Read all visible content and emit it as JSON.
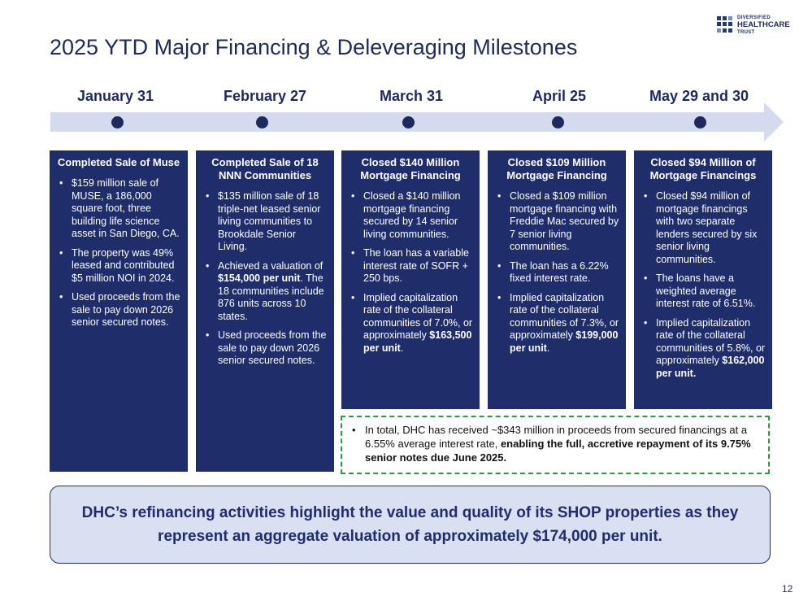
{
  "logo": {
    "line1": "DIVERSIFIED",
    "line2": "HEALTHCARE",
    "line3": "TRUST"
  },
  "title": "2025 YTD Major Financing & Deleveraging Milestones",
  "milestones": [
    {
      "date": "January 31",
      "card_title": "Completed Sale of Muse",
      "bullets": [
        {
          "text": "$159 million sale of MUSE, a 186,000 square foot, three building life science asset in San Diego, CA."
        },
        {
          "text": "The property was 49% leased and contributed $5 million NOI in 2024."
        },
        {
          "text": "Used proceeds from the sale to pay down 2026 senior secured notes."
        }
      ]
    },
    {
      "date": "February 27",
      "card_title": "Completed Sale of 18 NNN Communities",
      "bullets": [
        {
          "text": "$135 million sale of 18 triple-net leased senior living communities to Brookdale Senior Living."
        },
        {
          "pre": "Achieved a valuation of ",
          "bold": "$154,000 per unit",
          "post": ". The 18 communities include 876 units across 10 states."
        },
        {
          "text": "Used proceeds from the sale to pay down 2026 senior secured notes."
        }
      ]
    },
    {
      "date": "March 31",
      "card_title": "Closed $140 Million Mortgage Financing",
      "bullets": [
        {
          "text": "Closed a $140 million mortgage financing secured by 14 senior living communities."
        },
        {
          "text": "The loan has a variable interest rate of SOFR + 250 bps."
        },
        {
          "pre": "Implied capitalization rate of the collateral communities of 7.0%, or approximately ",
          "bold": "$163,500 per unit",
          "post": "."
        }
      ]
    },
    {
      "date": "April 25",
      "card_title": "Closed $109 Million Mortgage Financing",
      "bullets": [
        {
          "text": "Closed a $109 million mortgage financing with Freddie Mac secured by 7 senior living communities."
        },
        {
          "text": "The loan has a 6.22% fixed interest rate."
        },
        {
          "pre": "Implied capitalization rate of the collateral communities of 7.3%, or approximately ",
          "bold": "$199,000 per unit",
          "post": "."
        }
      ]
    },
    {
      "date": "May 29 and 30",
      "card_title": "Closed $94 Million of Mortgage Financings",
      "bullets": [
        {
          "text": "Closed $94 million of mortgage financings with two separate lenders secured by six senior living communities."
        },
        {
          "text": "The loans have a weighted average interest rate of 6.51%."
        },
        {
          "pre": "Implied capitalization rate of the collateral communities of 5.8%, or approximately ",
          "bold": "$162,000 per unit.",
          "post": ""
        }
      ]
    }
  ],
  "summary": {
    "pre": "In total, DHC has received ~$343 million in proceeds from secured financings at a 6.55% average interest rate, ",
    "bold": "enabling the full, accretive repayment of its 9.75% senior notes due June 2025."
  },
  "highlight": "DHC’s refinancing activities highlight the value and quality of its SHOP properties as they represent an aggregate valuation of approximately $174,000 per unit.",
  "page_number": "12",
  "colors": {
    "navy": "#1f2d6b",
    "timeline": "#d4dbef",
    "highlight_bg": "#d8e0f2",
    "dash_green": "#2e9a45"
  }
}
